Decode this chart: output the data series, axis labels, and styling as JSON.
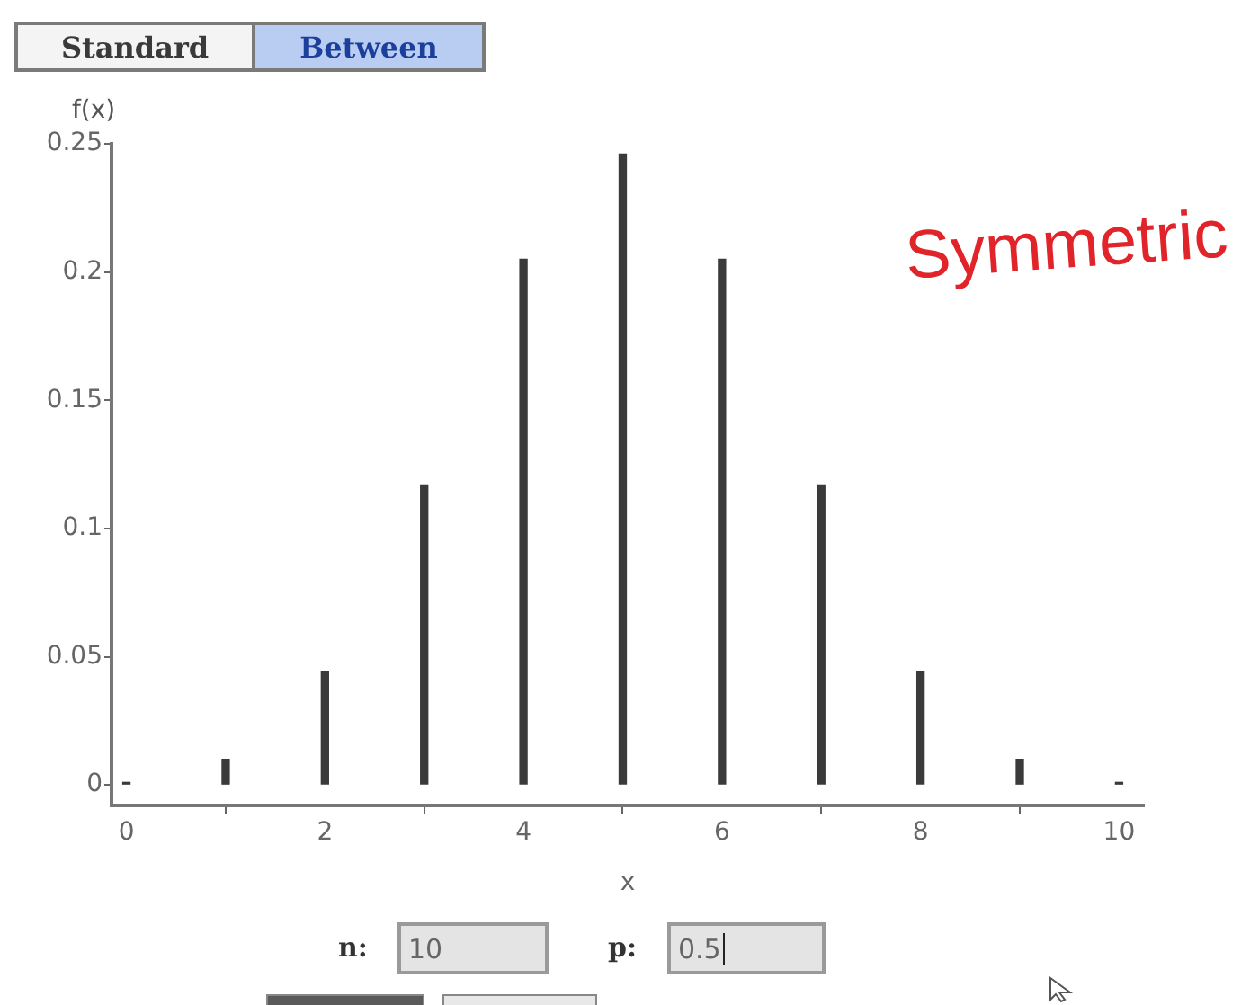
{
  "chart_data": {
    "type": "bar",
    "x": [
      0,
      1,
      2,
      3,
      4,
      5,
      6,
      7,
      8,
      9,
      10
    ],
    "values": [
      0.001,
      0.01,
      0.044,
      0.117,
      0.205,
      0.246,
      0.205,
      0.117,
      0.044,
      0.01,
      0.001
    ],
    "color": "#3a3a3a",
    "xlabel": "x",
    "ylabel": "f(x)",
    "xlim": [
      -0.15,
      10.25
    ],
    "ylim": [
      -0.008,
      0.25
    ],
    "xticks": [
      0,
      2,
      4,
      6,
      8,
      10
    ],
    "yticks": [
      0,
      0.05,
      0.1,
      0.15,
      0.2,
      0.25
    ],
    "grid": false,
    "legend": false,
    "annotations": [
      "Standard",
      "Between",
      "Symmetric",
      "n:",
      "10",
      "p:",
      "0.5"
    ]
  }
}
